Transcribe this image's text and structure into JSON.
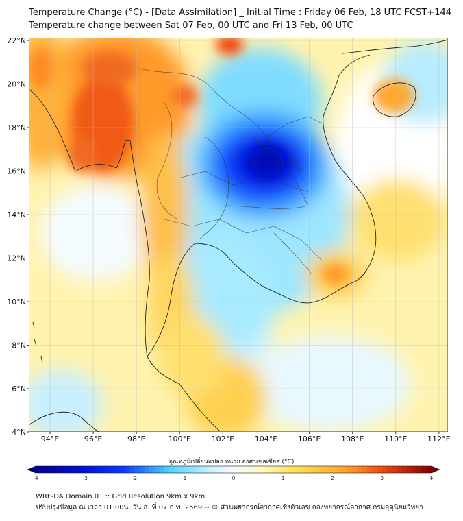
{
  "header": {
    "title_line1": "Temperature Change (°C) - [Data Assimilation] _ Initial Time : Friday 06 Feb, 18 UTC FCST+144",
    "title_line2": "Temperature change between Sat 07 Feb, 00 UTC and Fri 13 Feb, 00 UTC"
  },
  "map": {
    "lat_labels": [
      "22°N",
      "20°N",
      "18°N",
      "16°N",
      "14°N",
      "12°N",
      "10°N",
      "8°N",
      "6°N",
      "4°N"
    ],
    "lon_labels": [
      "94°E",
      "96°E",
      "98°E",
      "100°E",
      "102°E",
      "104°E",
      "106°E",
      "108°E",
      "110°E",
      "112°E"
    ]
  },
  "colorbar": {
    "label": "อุณหภูมิเปลี่ยนแปลง หน่วย องศาเซลเซียส (°C)",
    "ticks": [
      "-4",
      "-3",
      "-2",
      "-1",
      "0",
      "1",
      "2",
      "3",
      "4"
    ],
    "min": -4,
    "max": 4
  },
  "footer": {
    "line1": "WRF-DA Domain 01 :: Grid Resolution 9km x 9km",
    "line2": "ปรับปรุงข้อมูล ณ เวลา 01:00น. วัน ส. ที่ 07 ก.พ. 2569 -- © ส่วนพยากรณ์อากาศเชิงตัวเลข กองพยากรณ์อากาศ กรมอุตุนิยมวิทยา"
  },
  "colors": {
    "cold_max": "#00008f",
    "cold": "#0a3cff",
    "cool": "#4fd2ff",
    "neutral": "#f4fbff",
    "warm": "#ffe25a",
    "hot": "#f04a10",
    "hot_max": "#800000"
  }
}
